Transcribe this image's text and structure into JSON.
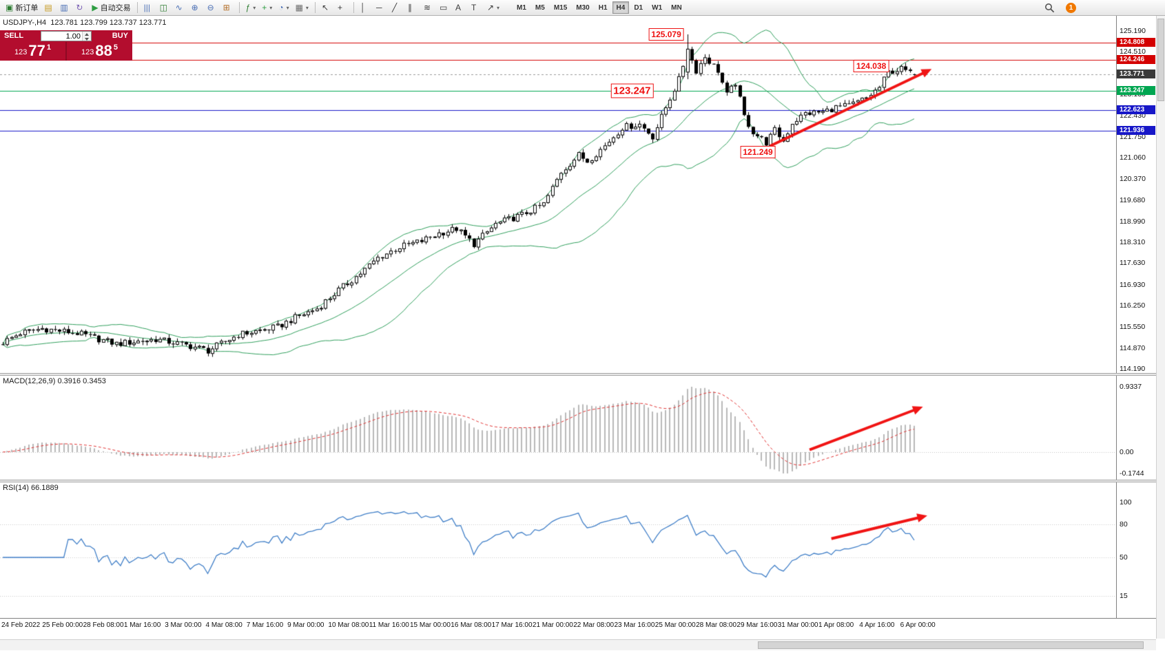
{
  "toolbar": {
    "dropdown_glyph": "▾",
    "buttons": [
      {
        "name": "new-order-button",
        "glyph": "▣",
        "color": "#2e7d32",
        "label": "新订单"
      },
      {
        "name": "chart-profiles-button",
        "glyph": "▤",
        "color": "#c79a1e"
      },
      {
        "name": "charts-window-button",
        "glyph": "▥",
        "color": "#4a6fb5"
      },
      {
        "name": "cycle-button",
        "glyph": "↻",
        "color": "#7a5fb5"
      },
      {
        "name": "autotrading-button",
        "glyph": "▶",
        "color": "#2e9d42",
        "label": "自动交易"
      },
      {
        "sep": true
      },
      {
        "name": "bar-chart-type-button",
        "glyph": "|||",
        "color": "#4a6fb5"
      },
      {
        "name": "candlestick-chart-type-button",
        "glyph": "◫",
        "color": "#2e7d32"
      },
      {
        "name": "line-chart-type-button",
        "glyph": "∿",
        "color": "#4a6fb5"
      },
      {
        "name": "zoom-in-button",
        "glyph": "⊕",
        "color": "#4a6fb5"
      },
      {
        "name": "zoom-out-button",
        "glyph": "⊖",
        "color": "#4a6fb5"
      },
      {
        "name": "tile-windows-button",
        "glyph": "⊞",
        "color": "#b5702a"
      },
      {
        "sep": true
      },
      {
        "name": "indicators-button",
        "glyph": "ƒ",
        "color": "#2e7d32",
        "dropdown": true
      },
      {
        "name": "add-indicator-button",
        "glyph": "+",
        "color": "#2e9d42",
        "dropdown": true
      },
      {
        "name": "periods-button",
        "glyph": "◔",
        "color": "#4a6fb5",
        "dropdown": true
      },
      {
        "name": "templates-button",
        "glyph": "▦",
        "color": "#6b6b6b",
        "dropdown": true
      },
      {
        "sep": true
      },
      {
        "name": "cursor-tool",
        "glyph": "↖",
        "color": "#3c3c3c"
      },
      {
        "name": "crosshair-tool",
        "glyph": "+",
        "color": "#3c3c3c"
      },
      {
        "sep": true
      },
      {
        "name": "vertical-line-tool",
        "glyph": "│",
        "color": "#3c3c3c"
      },
      {
        "name": "horizontal-line-tool",
        "glyph": "─",
        "color": "#3c3c3c"
      },
      {
        "name": "trendline-tool",
        "glyph": "╱",
        "color": "#3c3c3c"
      },
      {
        "name": "channel-tool",
        "glyph": "∥",
        "color": "#3c3c3c"
      },
      {
        "name": "fibonacci-tool",
        "glyph": "≋",
        "color": "#3c3c3c"
      },
      {
        "name": "shapes-tool",
        "glyph": "▭",
        "color": "#3c3c3c"
      },
      {
        "name": "text-tool",
        "glyph": "A",
        "color": "#3c3c3c"
      },
      {
        "name": "label-tool",
        "glyph": "T",
        "color": "#3c3c3c"
      },
      {
        "name": "arrow-objects-tool",
        "glyph": "↗",
        "color": "#3c3c3c",
        "dropdown": true
      }
    ],
    "timeframes": [
      "M1",
      "M5",
      "M15",
      "M30",
      "H1",
      "H4",
      "D1",
      "W1",
      "MN"
    ],
    "active_timeframe": "H4",
    "notification_count": "1"
  },
  "trade_panel": {
    "sell_label": "SELL",
    "buy_label": "BUY",
    "volume": "1.00",
    "bid": {
      "prefix": "123",
      "big": "77",
      "sup": "1"
    },
    "ask": {
      "prefix": "123",
      "big": "88",
      "sup": "5"
    },
    "panel_color": "#b30d2e"
  },
  "chart_header": {
    "title": "USDJPY-,H4  123.781 123.799 123.737 123.771"
  },
  "chart_data": {
    "type": "candlestick",
    "symbol": "USDJPY-",
    "timeframe": "H4",
    "last_ohlc": {
      "open": 123.781,
      "high": 123.799,
      "low": 123.737,
      "close": 123.771
    },
    "num_candles": 210,
    "price_anchors": [
      [
        0,
        115.05
      ],
      [
        4,
        115.35
      ],
      [
        9,
        115.5
      ],
      [
        17,
        115.35
      ],
      [
        26,
        115.0
      ],
      [
        35,
        115.15
      ],
      [
        44,
        114.9
      ],
      [
        47,
        114.78
      ],
      [
        54,
        115.3
      ],
      [
        63,
        115.55
      ],
      [
        67,
        115.85
      ],
      [
        72,
        116.15
      ],
      [
        77,
        116.75
      ],
      [
        82,
        117.3
      ],
      [
        86,
        117.8
      ],
      [
        91,
        118.15
      ],
      [
        96,
        118.35
      ],
      [
        100,
        118.6
      ],
      [
        104,
        118.75
      ],
      [
        108,
        118.25
      ],
      [
        113,
        118.9
      ],
      [
        119,
        119.2
      ],
      [
        124,
        119.55
      ],
      [
        128,
        120.6
      ],
      [
        132,
        121.15
      ],
      [
        134,
        120.95
      ],
      [
        138,
        121.45
      ],
      [
        142,
        122.05
      ],
      [
        146,
        122.15
      ],
      [
        149,
        121.75
      ],
      [
        152,
        122.7
      ],
      [
        155,
        123.6
      ],
      [
        157,
        124.55
      ],
      [
        159,
        123.9
      ],
      [
        161,
        124.35
      ],
      [
        164,
        123.9
      ],
      [
        166,
        123.1
      ],
      [
        168,
        123.5
      ],
      [
        170,
        122.4
      ],
      [
        172,
        121.9
      ],
      [
        175,
        121.55
      ],
      [
        177,
        121.95
      ],
      [
        179,
        121.6
      ],
      [
        181,
        122.2
      ],
      [
        184,
        122.5
      ],
      [
        188,
        122.55
      ],
      [
        191,
        122.7
      ],
      [
        194,
        122.75
      ],
      [
        198,
        123.0
      ],
      [
        201,
        123.35
      ],
      [
        203,
        123.85
      ],
      [
        206,
        123.95
      ],
      [
        209,
        123.771
      ]
    ],
    "candle_overrides": [
      {
        "i": 157,
        "o": 123.85,
        "c": 124.6,
        "h": 125.079,
        "l": 123.62
      },
      {
        "i": 175,
        "l": 121.249
      },
      {
        "i": 209,
        "o": 123.781,
        "h": 123.799,
        "l": 123.737,
        "c": 123.771
      }
    ],
    "y_axis": {
      "min": 114.19,
      "max": 125.19,
      "ticks": [
        "125.190",
        "124.510",
        "123.130",
        "122.430",
        "121.750",
        "121.060",
        "120.370",
        "119.680",
        "118.990",
        "118.310",
        "117.630",
        "116.930",
        "116.250",
        "115.550",
        "114.870",
        "114.190"
      ]
    },
    "level_lines": [
      {
        "price": 124.808,
        "label": "124.808",
        "color": "#d40000",
        "style": "solid"
      },
      {
        "price": 124.246,
        "label": "124.246",
        "color": "#d40000",
        "style": "solid"
      },
      {
        "price": 123.247,
        "label": "123.247",
        "color": "#00a651",
        "style": "solid"
      },
      {
        "price": 122.623,
        "label": "122.623",
        "color": "#1717c8",
        "style": "solid"
      },
      {
        "price": 121.936,
        "label": "121.936",
        "color": "#1717c8",
        "style": "solid"
      }
    ],
    "current_price": {
      "price": 123.771,
      "label": "123.771",
      "color": "#3a3a3a"
    },
    "annotations": [
      {
        "text": "125.079",
        "i": 157,
        "price": 125.079,
        "large": false
      },
      {
        "text": "124.038",
        "i": 204,
        "price": 124.038,
        "large": false
      },
      {
        "text": "123.247",
        "i": 150,
        "price": 123.247,
        "large": true
      },
      {
        "text": "121.249",
        "i": 178,
        "price": 121.249,
        "large": false
      }
    ],
    "trend_arrows": [
      {
        "panel": "main",
        "from": {
          "i": 176,
          "v": 121.45
        },
        "to": {
          "i": 213,
          "v": 123.95
        }
      },
      {
        "panel": "macd",
        "from": {
          "i": 185,
          "v": 0.03
        },
        "to": {
          "i": 211,
          "v": 0.62
        }
      },
      {
        "panel": "rsi",
        "from": {
          "i": 190,
          "v": 67
        },
        "to": {
          "i": 212,
          "v": 88
        }
      }
    ],
    "bollinger": {
      "period": 20,
      "deviation": 2,
      "color": "#2e9e5b"
    },
    "indicators": {
      "macd": {
        "label": "MACD(12,26,9) 0.3916 0.3453",
        "params": [
          12,
          26,
          9
        ],
        "values": [
          0.3916,
          0.3453
        ],
        "axis_max": "0.9337",
        "axis_zero": "0.00",
        "axis_min": "-0.1744",
        "histogram_color": "#b8b8b8",
        "signal_color": "#e03030"
      },
      "rsi": {
        "label": "RSI(14) 66.1889",
        "period": 14,
        "value": 66.1889,
        "axis_labels": [
          "100",
          "80",
          "50",
          "15"
        ],
        "levels": [
          80,
          50,
          15
        ],
        "line_color": "#3f7ec7"
      }
    },
    "time_axis": [
      "24 Feb 2022",
      "25 Feb 00:00",
      "28 Feb 08:00",
      "1 Mar 16:00",
      "3 Mar 00:00",
      "4 Mar 08:00",
      "7 Mar 16:00",
      "9 Mar 00:00",
      "10 Mar 08:00",
      "11 Mar 16:00",
      "15 Mar 00:00",
      "16 Mar 08:00",
      "17 Mar 16:00",
      "21 Mar 00:00",
      "22 Mar 08:00",
      "23 Mar 16:00",
      "25 Mar 00:00",
      "28 Mar 08:00",
      "29 Mar 16:00",
      "31 Mar 00:00",
      "1 Apr 08:00",
      "4 Apr 16:00",
      "6 Apr 00:00"
    ],
    "arrow_color": "#f01414"
  }
}
